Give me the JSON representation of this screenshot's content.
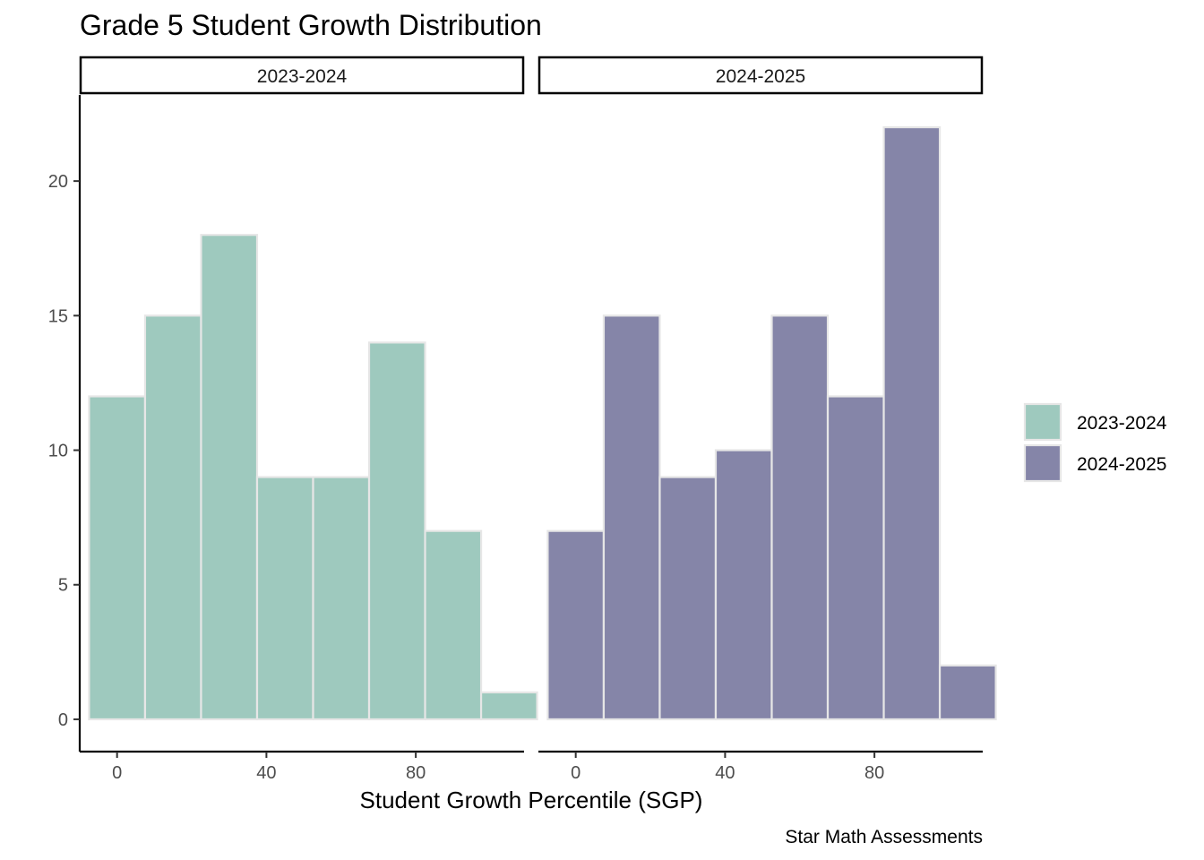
{
  "chart_data": {
    "type": "bar",
    "title": "Grade 5 Student Growth Distribution",
    "xlabel": "Student Growth Percentile (SGP)",
    "ylabel": "",
    "caption": "Star Math Assessments",
    "bin_width": 15,
    "xlim": [
      -10,
      109
    ],
    "ylim": [
      -1.2,
      23.2
    ],
    "x_ticks": [
      0,
      40,
      80
    ],
    "y_ticks": [
      0,
      5,
      10,
      15,
      20
    ],
    "facets": [
      {
        "name": "2023-2024",
        "color": "#9EC9BE",
        "bin_centers": [
          0,
          15,
          30,
          45,
          60,
          75,
          90,
          105
        ],
        "values": [
          12,
          15,
          18,
          9,
          9,
          14,
          7,
          1
        ]
      },
      {
        "name": "2024-2025",
        "color": "#8585A8",
        "bin_centers": [
          0,
          15,
          30,
          45,
          60,
          75,
          90,
          105
        ],
        "values": [
          7,
          15,
          9,
          10,
          15,
          12,
          22,
          2
        ]
      }
    ],
    "legend": {
      "position": "right",
      "entries": [
        {
          "label": "2023-2024",
          "color": "#9EC9BE"
        },
        {
          "label": "2024-2025",
          "color": "#8585A8"
        }
      ]
    },
    "grid": false
  }
}
